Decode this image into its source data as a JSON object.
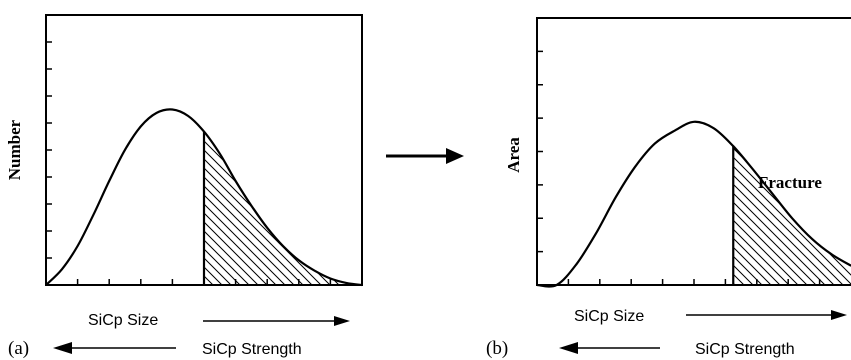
{
  "chart_data": [
    {
      "type": "area",
      "panel_label": "(a)",
      "ylabel": "Number",
      "xlabel_top": "SiCp Size",
      "xlabel_bottom": "SiCp Strength",
      "x": [
        0,
        0.5,
        1,
        1.5,
        2,
        2.5,
        3,
        3.5,
        4,
        4.5,
        5,
        5.5,
        6,
        6.5,
        7,
        7.5,
        8,
        8.5,
        9,
        9.5,
        10
      ],
      "y": [
        0.0,
        0.6,
        1.5,
        2.7,
        4.0,
        5.2,
        6.1,
        6.62,
        6.75,
        6.5,
        5.9,
        5.05,
        4.0,
        3.05,
        2.2,
        1.5,
        0.95,
        0.55,
        0.25,
        0.08,
        0.0
      ],
      "shaded_from_x": 5.0,
      "xlim": [
        0,
        10
      ],
      "ylim": [
        0,
        10
      ]
    },
    {
      "type": "area",
      "panel_label": "(b)",
      "ylabel": "Area",
      "xlabel_top": "SiCp Size",
      "xlabel_bottom": "SiCp Strength",
      "annotation": "Fracture",
      "x": [
        0,
        0.5,
        1,
        1.5,
        2,
        2.5,
        3,
        3.5,
        4,
        4.5,
        5,
        5.5,
        6,
        6.5,
        7,
        7.5,
        8
      ],
      "y": [
        0.0,
        0.0,
        0.8,
        2.0,
        3.4,
        4.6,
        5.5,
        6.0,
        6.35,
        6.1,
        5.4,
        4.5,
        3.55,
        2.6,
        1.8,
        1.2,
        0.75
      ],
      "shaded_from_x": 5.0,
      "xlim": [
        0,
        8
      ],
      "ylim": [
        0,
        10
      ]
    }
  ]
}
